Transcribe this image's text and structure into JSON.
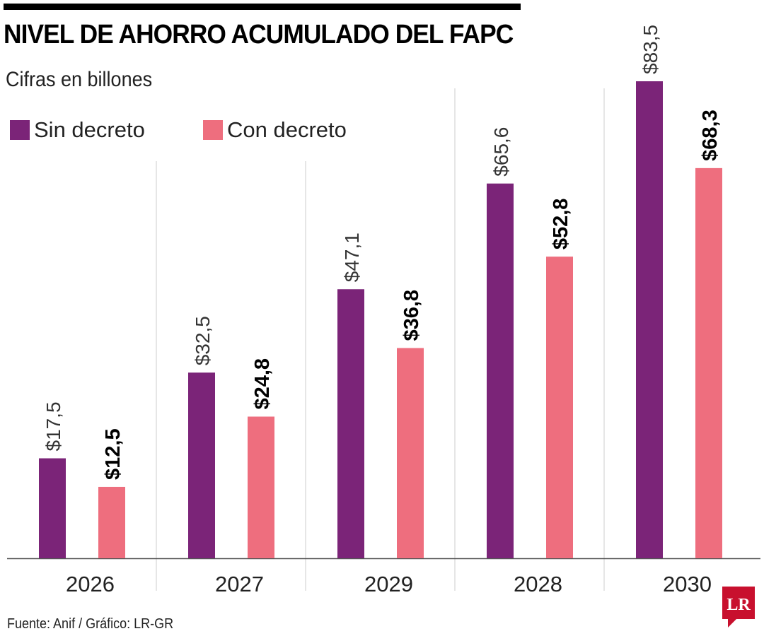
{
  "chart_data": {
    "type": "bar",
    "title": "NIVEL DE AHORRO ACUMULADO DEL FAPC",
    "subtitle": "Cifras en billones",
    "categories": [
      "2026",
      "2027",
      "2029",
      "2028",
      "2030"
    ],
    "series": [
      {
        "name": "Sin decreto",
        "color": "#7b2478",
        "values": [
          17.5,
          32.5,
          47.1,
          65.6,
          83.5
        ],
        "labels": [
          "$17,5",
          "$32,5",
          "$47,1",
          "$65,6",
          "$83,5"
        ]
      },
      {
        "name": "Con decreto",
        "color": "#ee6e7e",
        "values": [
          12.5,
          24.8,
          36.8,
          52.8,
          68.3
        ],
        "labels": [
          "$12,5",
          "$24,8",
          "$36,8",
          "$52,8",
          "$68,3"
        ]
      }
    ],
    "ylim": [
      0,
      85
    ],
    "grid": false,
    "legend_placement": "top-left",
    "source": "Fuente: Anif / Gráfico: LR-GR"
  },
  "logo": {
    "text": "LR",
    "color": "#c8102e"
  }
}
